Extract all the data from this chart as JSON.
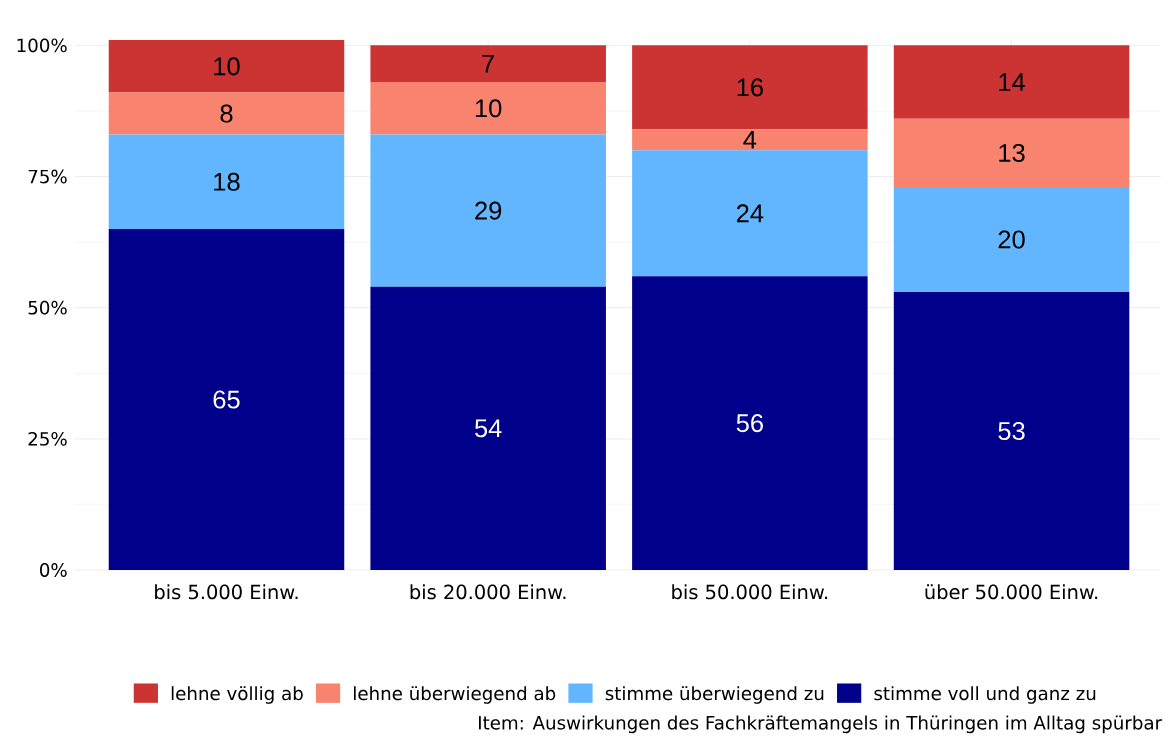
{
  "chart_data": {
    "type": "bar",
    "stacked": true,
    "categories": [
      "bis 5.000 Einw.",
      "bis 20.000 Einw.",
      "bis 50.000 Einw.",
      "über 50.000 Einw."
    ],
    "series": [
      {
        "name": "stimme voll und ganz zu",
        "color": "#00008b",
        "values": [
          65,
          54,
          56,
          53
        ]
      },
      {
        "name": "stimme überwiegend zu",
        "color": "#62b6ff",
        "values": [
          18,
          29,
          24,
          20
        ]
      },
      {
        "name": "lehne überwiegend ab",
        "color": "#f8836f",
        "values": [
          8,
          10,
          4,
          13
        ]
      },
      {
        "name": "lehne völlig ab",
        "color": "#cc3333",
        "values": [
          10,
          7,
          16,
          14
        ]
      }
    ],
    "ylim": [
      0,
      101
    ],
    "yticks": [
      {
        "value": 0,
        "label": "0%"
      },
      {
        "value": 25,
        "label": "25%"
      },
      {
        "value": 50,
        "label": "50%"
      },
      {
        "value": 75,
        "label": "75%"
      },
      {
        "value": 100,
        "label": "100%"
      }
    ],
    "grid": true,
    "legend": "bottom",
    "data_labels": true,
    "annotations": [
      "Item: Auswirkungen des Fachkräftemangels in Thüringen im Alltag spürbar"
    ]
  }
}
